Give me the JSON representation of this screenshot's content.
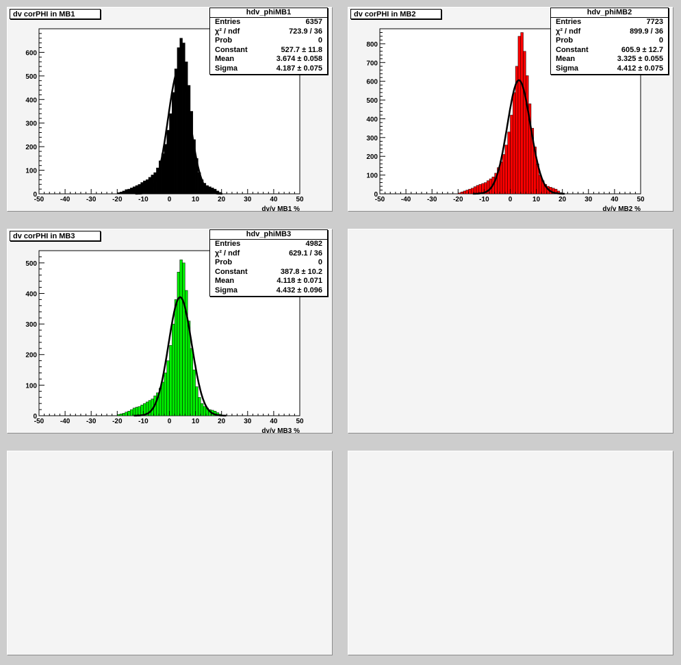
{
  "pads": [
    {
      "id": "mb1",
      "title": "dv corPHI in MB1",
      "xlabel": "dv/v  MB1   %",
      "fill": "#000000",
      "stats": {
        "name": "hdv_phiMB1",
        "rows": [
          {
            "label": "Entries",
            "value": "6357"
          },
          {
            "label": "χ² / ndf",
            "value": "723.9 / 36"
          },
          {
            "label": "Prob",
            "value": "0"
          },
          {
            "label": "Constant",
            "value": "527.7 ± 11.8"
          },
          {
            "label": "Mean",
            "value": "3.674 ± 0.058"
          },
          {
            "label": "Sigma",
            "value": "4.187 ± 0.075"
          }
        ]
      }
    },
    {
      "id": "mb2",
      "title": "dv corPHI in MB2",
      "xlabel": "dv/v  MB2   %",
      "fill": "#ff0000",
      "stats": {
        "name": "hdv_phiMB2",
        "rows": [
          {
            "label": "Entries",
            "value": "7723"
          },
          {
            "label": "χ² / ndf",
            "value": "899.9 / 36"
          },
          {
            "label": "Prob",
            "value": "0"
          },
          {
            "label": "Constant",
            "value": "605.9 ± 12.7"
          },
          {
            "label": "Mean",
            "value": "3.325 ± 0.055"
          },
          {
            "label": "Sigma",
            "value": "4.412 ± 0.075"
          }
        ]
      }
    },
    {
      "id": "mb3",
      "title": "dv corPHI in MB3",
      "xlabel": "dv/v  MB3   %",
      "fill": "#00ee00",
      "stats": {
        "name": "hdv_phiMB3",
        "rows": [
          {
            "label": "Entries",
            "value": "4982"
          },
          {
            "label": "χ² / ndf",
            "value": "629.1 / 36"
          },
          {
            "label": "Prob",
            "value": "0"
          },
          {
            "label": "Constant",
            "value": "387.8 ± 10.2"
          },
          {
            "label": "Mean",
            "value": "4.118 ± 0.071"
          },
          {
            "label": "Sigma",
            "value": "4.432 ± 0.096"
          }
        ]
      }
    }
  ],
  "chart_data": [
    {
      "type": "bar",
      "title": "dv corPHI in MB1",
      "xlabel": "dv/v  MB1   %",
      "xlim": [
        -50,
        50
      ],
      "ylim": [
        0,
        700
      ],
      "xticks": [
        -50,
        -40,
        -30,
        -20,
        -10,
        0,
        10,
        20,
        30,
        40,
        50
      ],
      "yticks": [
        0,
        100,
        200,
        300,
        400,
        500,
        600
      ],
      "bin_width": 1,
      "bin_starts": [
        -20,
        -19,
        -18,
        -17,
        -16,
        -15,
        -14,
        -13,
        -12,
        -11,
        -10,
        -9,
        -8,
        -7,
        -6,
        -5,
        -4,
        -3,
        -2,
        -1,
        0,
        1,
        2,
        3,
        4,
        5,
        6,
        7,
        8,
        9,
        10,
        11,
        12,
        13,
        14,
        15,
        16,
        17,
        18,
        19
      ],
      "values": [
        5,
        8,
        12,
        18,
        20,
        25,
        30,
        35,
        40,
        48,
        55,
        60,
        70,
        80,
        90,
        110,
        140,
        170,
        210,
        270,
        340,
        430,
        530,
        620,
        660,
        640,
        560,
        460,
        350,
        230,
        150,
        90,
        60,
        45,
        35,
        30,
        25,
        20,
        12,
        6
      ],
      "fit": {
        "constant": 527.7,
        "mean": 3.674,
        "sigma": 4.187
      }
    },
    {
      "type": "bar",
      "title": "dv corPHI in MB2",
      "xlabel": "dv/v  MB2   %",
      "xlim": [
        -50,
        50
      ],
      "ylim": [
        0,
        880
      ],
      "xticks": [
        -50,
        -40,
        -30,
        -20,
        -10,
        0,
        10,
        20,
        30,
        40,
        50
      ],
      "yticks": [
        0,
        100,
        200,
        300,
        400,
        500,
        600,
        700,
        800
      ],
      "bin_width": 1,
      "bin_starts": [
        -20,
        -19,
        -18,
        -17,
        -16,
        -15,
        -14,
        -13,
        -12,
        -11,
        -10,
        -9,
        -8,
        -7,
        -6,
        -5,
        -4,
        -3,
        -2,
        -1,
        0,
        1,
        2,
        3,
        4,
        5,
        6,
        7,
        8,
        9,
        10,
        11,
        12,
        13,
        14,
        15,
        16,
        17,
        18,
        19
      ],
      "values": [
        5,
        10,
        15,
        20,
        25,
        30,
        38,
        45,
        50,
        55,
        60,
        70,
        80,
        90,
        110,
        140,
        170,
        210,
        260,
        330,
        420,
        540,
        680,
        840,
        860,
        760,
        630,
        480,
        350,
        250,
        160,
        100,
        70,
        50,
        40,
        35,
        30,
        25,
        15,
        6
      ],
      "fit": {
        "constant": 605.9,
        "mean": 3.325,
        "sigma": 4.412
      }
    },
    {
      "type": "bar",
      "title": "dv corPHI in MB3",
      "xlabel": "dv/v  MB3   %",
      "xlim": [
        -50,
        50
      ],
      "ylim": [
        0,
        540
      ],
      "xticks": [
        -50,
        -40,
        -30,
        -20,
        -10,
        0,
        10,
        20,
        30,
        40,
        50
      ],
      "yticks": [
        0,
        100,
        200,
        300,
        400,
        500
      ],
      "bin_width": 1,
      "bin_starts": [
        -20,
        -19,
        -18,
        -17,
        -16,
        -15,
        -14,
        -13,
        -12,
        -11,
        -10,
        -9,
        -8,
        -7,
        -6,
        -5,
        -4,
        -3,
        -2,
        -1,
        0,
        1,
        2,
        3,
        4,
        5,
        6,
        7,
        8,
        9,
        10,
        11,
        12,
        13,
        14,
        15,
        16,
        17,
        18,
        19
      ],
      "values": [
        4,
        6,
        8,
        12,
        15,
        20,
        25,
        28,
        30,
        35,
        40,
        45,
        50,
        55,
        65,
        75,
        90,
        110,
        140,
        180,
        230,
        300,
        380,
        470,
        510,
        500,
        410,
        310,
        220,
        150,
        95,
        60,
        40,
        30,
        25,
        20,
        18,
        15,
        10,
        5
      ],
      "fit": {
        "constant": 387.8,
        "mean": 4.118,
        "sigma": 4.432
      }
    }
  ]
}
